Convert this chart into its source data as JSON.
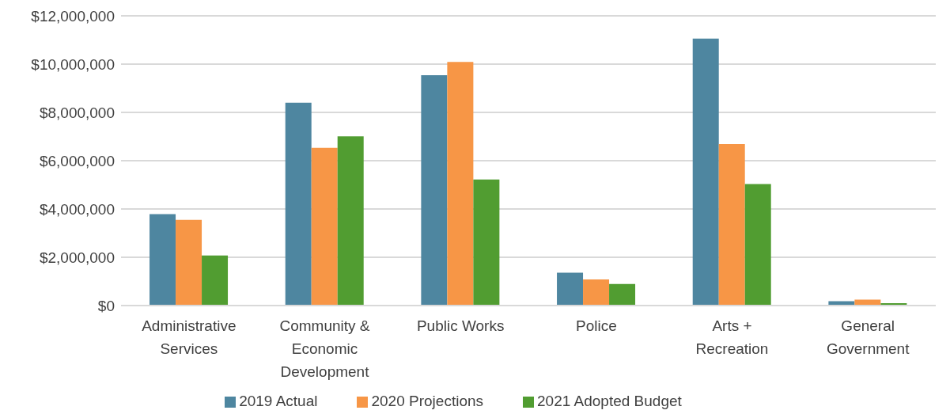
{
  "chart_data": {
    "type": "bar",
    "categories": [
      "Administrative Services",
      "Community & Economic Development",
      "Public Works",
      "Police",
      "Arts + Recreation",
      "General Government"
    ],
    "series": [
      {
        "name": "2019 Actual",
        "color": "#4e86a0",
        "values": [
          3790000,
          8400000,
          9540000,
          1360000,
          11060000,
          180000
        ]
      },
      {
        "name": "2020 Projections",
        "color": "#f79646",
        "values": [
          3550000,
          6530000,
          10090000,
          1080000,
          6690000,
          250000
        ]
      },
      {
        "name": "2021 Adopted Budget",
        "color": "#519d31",
        "values": [
          2070000,
          7010000,
          5220000,
          890000,
          5030000,
          100000
        ]
      }
    ],
    "ylim": [
      0,
      12000000
    ],
    "yticks": [
      {
        "value": 0,
        "label": "$0"
      },
      {
        "value": 2000000,
        "label": "$2,000,000"
      },
      {
        "value": 4000000,
        "label": "$4,000,000"
      },
      {
        "value": 6000000,
        "label": "$6,000,000"
      },
      {
        "value": 8000000,
        "label": "$8,000,000"
      },
      {
        "value": 10000000,
        "label": "$10,000,000"
      },
      {
        "value": 12000000,
        "label": "$12,000,000"
      }
    ],
    "grid": "y",
    "legend": "bottom"
  }
}
